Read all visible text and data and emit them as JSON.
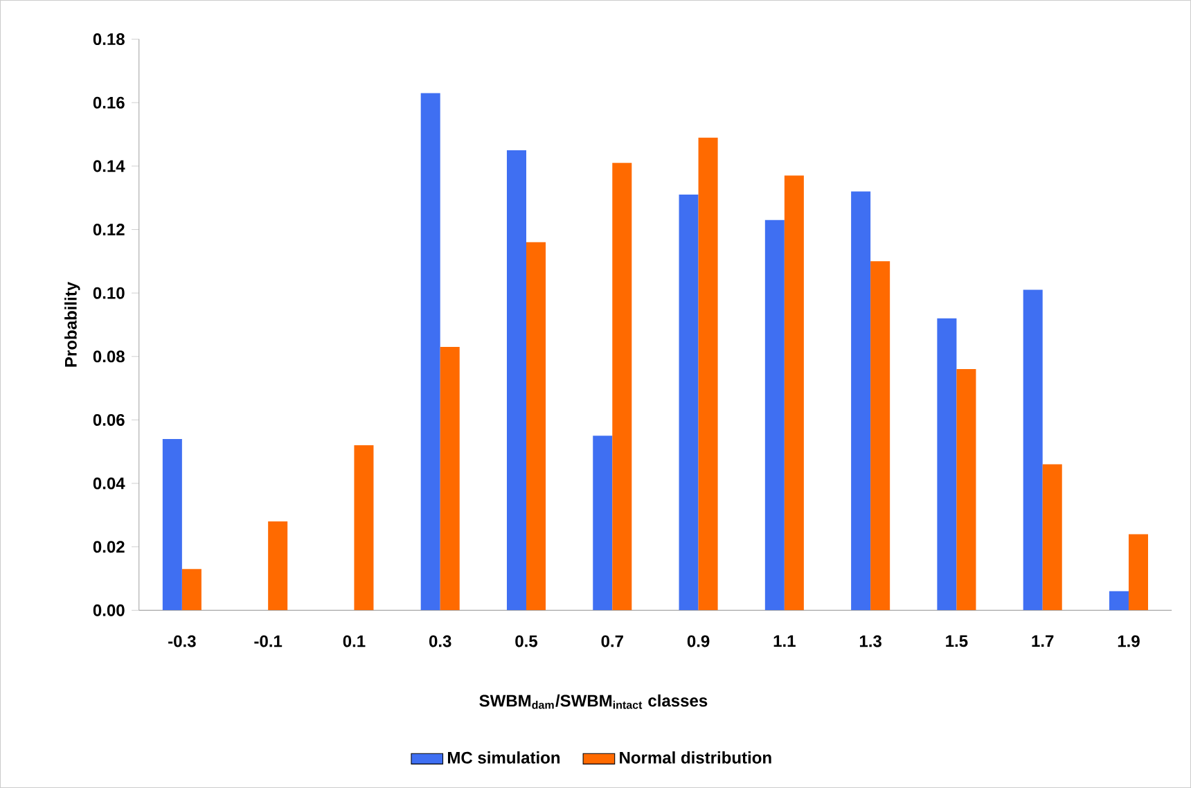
{
  "chart_data": {
    "type": "bar",
    "xlabel": "SWBM$_{dam}$/SWBM$_{intact}$ classes",
    "ylabel": "Probability",
    "categories": [
      "-0.3",
      "-0.1",
      "0.1",
      "0.3",
      "0.5",
      "0.7",
      "0.9",
      "1.1",
      "1.3",
      "1.5",
      "1.7",
      "1.9"
    ],
    "series": [
      {
        "name": "MC simulation",
        "color": "#3f6ff2",
        "values": [
          0.054,
          0,
          0,
          0.163,
          0.145,
          0.055,
          0.131,
          0.123,
          0.132,
          0.092,
          0.101,
          0.006
        ]
      },
      {
        "name": "Normal distribution",
        "color": "#ff6a00",
        "values": [
          0.013,
          0.028,
          0.052,
          0.083,
          0.116,
          0.141,
          0.149,
          0.137,
          0.11,
          0.076,
          0.046,
          0.024
        ]
      }
    ],
    "ylim": [
      0,
      0.18
    ],
    "yticks": [
      {
        "value": 0,
        "label": "0.00"
      },
      {
        "value": 0.02,
        "label": "0.02"
      },
      {
        "value": 0.04,
        "label": "0.04"
      },
      {
        "value": 0.06,
        "label": "0.06"
      },
      {
        "value": 0.08,
        "label": "0.08"
      },
      {
        "value": 0.1,
        "label": "0.10"
      },
      {
        "value": 0.12,
        "label": "0.12"
      },
      {
        "value": 0.14,
        "label": "0.14"
      },
      {
        "value": 0.16,
        "label": "0.16"
      },
      {
        "value": 0.18,
        "label": "0.18"
      }
    ],
    "grid": false,
    "legend": "bottom"
  }
}
